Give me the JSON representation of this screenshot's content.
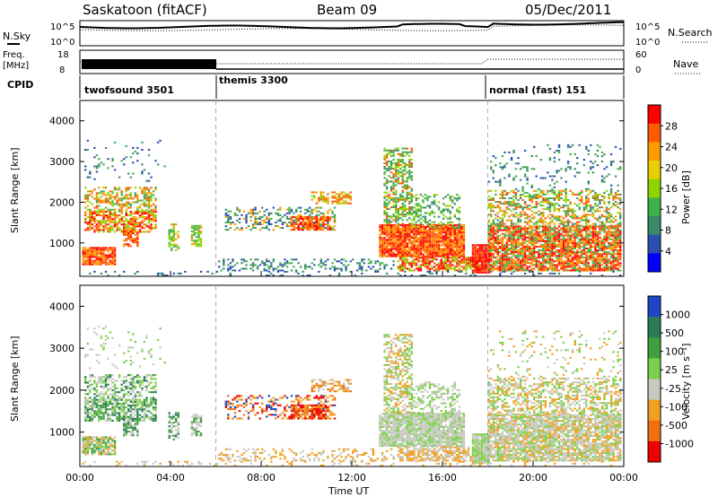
{
  "header": {
    "title": "Saskatoon (fitACF)",
    "beam": "Beam 09",
    "date": "05/Dec/2011"
  },
  "top_panels": {
    "nsky_label": "N.Sky",
    "nsearch_label": "N.Search",
    "freq_label_1": "Freq.",
    "freq_label_2": "[MHz]",
    "nave_label": "Nave",
    "cpid_label": "CPID",
    "nsky_ticks": [
      "10^5",
      "10^0"
    ],
    "nsearch_ticks": [
      "10^5",
      "10^0"
    ],
    "freq_ticks": [
      "18",
      "8"
    ],
    "nave_ticks": [
      "60",
      "0"
    ]
  },
  "cpid_segments": [
    {
      "name": "twofsound 3501",
      "start": 0,
      "end": 6
    },
    {
      "name": "themis 3300",
      "start": 6,
      "end": 18
    },
    {
      "name": "normal (fast) 151",
      "start": 18,
      "end": 24
    }
  ],
  "power_colorbar": {
    "label": "Power [dB]",
    "ticks": [
      "28",
      "24",
      "20",
      "16",
      "12",
      "8",
      "4"
    ],
    "colors": [
      "#ff0000",
      "#ff5a00",
      "#ff9a00",
      "#e6d000",
      "#8ed400",
      "#3fb04a",
      "#3a8a6a",
      "#2a4fb0",
      "#0000ff"
    ]
  },
  "velocity_colorbar": {
    "label": "Velocity [m s⁻¹]",
    "ticks": [
      "1000",
      "500",
      "100",
      "25",
      "-25",
      "-100",
      "-500",
      "-1000"
    ],
    "colors": [
      "#2046c8",
      "#2b7b58",
      "#3fa040",
      "#7ad04a",
      "#c8c8c0",
      "#f0a020",
      "#f07010",
      "#ee0000"
    ]
  },
  "chart_data": [
    {
      "type": "heatmap",
      "title": "Power",
      "ylabel": "Slant Range [km]",
      "xlabel": "",
      "xlim": [
        0,
        24
      ],
      "ylim": [
        180,
        4500
      ],
      "y_ticks": [
        "4000",
        "3000",
        "2000",
        "1000"
      ],
      "colorbar_label": "Power [dB]",
      "colorbar_range": [
        0,
        30
      ]
    },
    {
      "type": "heatmap",
      "title": "Velocity",
      "ylabel": "Slant Range [km]",
      "xlabel": "Time UT",
      "xlim": [
        0,
        24
      ],
      "ylim": [
        180,
        4500
      ],
      "y_ticks": [
        "4000",
        "3000",
        "2000",
        "1000"
      ],
      "x_ticks": [
        "00:00",
        "04:00",
        "08:00",
        "12:00",
        "16:00",
        "20:00",
        "00:00"
      ],
      "colorbar_label": "Velocity [m s⁻¹]",
      "colorbar_range": [
        -1000,
        1000
      ]
    }
  ],
  "axis": {
    "xlabel": "Time UT"
  }
}
